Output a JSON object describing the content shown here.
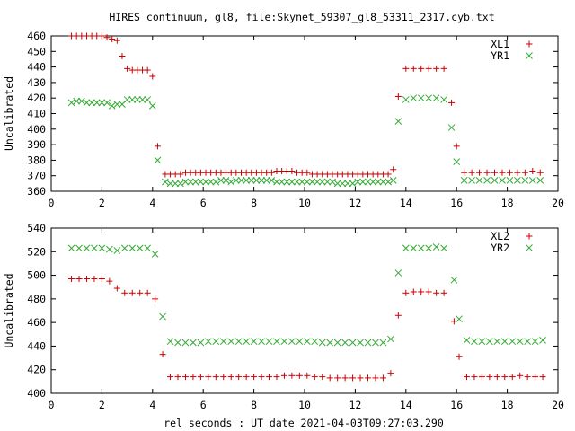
{
  "title": "HIRES continuum, gl8, file:Skynet_59307_gl8_53311_2317.cyb.txt",
  "xlabel": "rel seconds : UT date 2021-04-03T09:27:03.290",
  "colors": {
    "plus": "#cc0000",
    "x": "#33aa33"
  },
  "chart_data": [
    {
      "type": "scatter",
      "ylabel": "Uncalibrated",
      "xlim": [
        0,
        20
      ],
      "ylim": [
        360,
        460
      ],
      "xticks": [
        "0",
        "2",
        "4",
        "6",
        "8",
        "10",
        "12",
        "14",
        "16",
        "18",
        "20"
      ],
      "yticks": [
        "360",
        "370",
        "380",
        "390",
        "400",
        "410",
        "420",
        "430",
        "440",
        "450",
        "460"
      ],
      "legend_position": "top-right",
      "x": [
        0.8,
        1.0,
        1.2,
        1.4,
        1.6,
        1.8,
        2.0,
        2.2,
        2.4,
        2.6,
        2.8,
        3.0,
        3.2,
        3.4,
        3.6,
        3.8,
        4.0,
        4.2,
        4.5,
        4.7,
        4.9,
        5.1,
        5.3,
        5.5,
        5.7,
        5.9,
        6.1,
        6.3,
        6.5,
        6.7,
        6.9,
        7.1,
        7.3,
        7.5,
        7.7,
        7.9,
        8.1,
        8.3,
        8.5,
        8.7,
        8.9,
        9.1,
        9.3,
        9.5,
        9.7,
        9.9,
        10.1,
        10.3,
        10.5,
        10.7,
        10.9,
        11.1,
        11.3,
        11.5,
        11.7,
        11.9,
        12.1,
        12.3,
        12.5,
        12.7,
        12.9,
        13.1,
        13.3,
        13.5,
        13.7,
        14.0,
        14.3,
        14.6,
        14.9,
        15.2,
        15.5,
        15.8,
        16.0,
        16.3,
        16.6,
        16.9,
        17.2,
        17.5,
        17.8,
        18.1,
        18.4,
        18.7,
        19.0,
        19.3
      ],
      "series": [
        {
          "name": "XL1",
          "marker": "plus",
          "values": [
            460,
            460,
            460,
            460,
            460,
            460,
            460,
            459,
            458,
            457,
            447,
            439,
            438,
            438,
            438,
            438,
            434,
            389,
            371,
            371,
            371,
            371,
            372,
            372,
            372,
            372,
            372,
            372,
            372,
            372,
            372,
            372,
            372,
            372,
            372,
            372,
            372,
            372,
            372,
            372,
            373,
            373,
            373,
            373,
            372,
            372,
            372,
            371,
            371,
            371,
            371,
            371,
            371,
            371,
            371,
            371,
            371,
            371,
            371,
            371,
            371,
            371,
            371,
            374,
            421,
            439,
            439,
            439,
            439,
            439,
            439,
            417,
            389,
            372,
            372,
            372,
            372,
            372,
            372,
            372,
            372,
            372,
            373,
            372
          ]
        },
        {
          "name": "YR1",
          "marker": "x",
          "values": [
            417,
            418,
            418,
            417,
            417,
            417,
            417,
            417,
            415,
            416,
            416,
            419,
            419,
            419,
            419,
            419,
            415,
            380,
            366,
            365,
            365,
            365,
            366,
            366,
            366,
            366,
            366,
            366,
            366,
            367,
            367,
            366,
            367,
            367,
            367,
            367,
            367,
            367,
            367,
            367,
            366,
            366,
            366,
            366,
            366,
            366,
            366,
            366,
            366,
            366,
            366,
            366,
            365,
            365,
            365,
            365,
            366,
            366,
            366,
            366,
            366,
            366,
            366,
            367,
            405,
            419,
            420,
            420,
            420,
            420,
            419,
            401,
            379,
            367,
            367,
            367,
            367,
            367,
            367,
            367,
            367,
            367,
            367,
            367
          ]
        }
      ]
    },
    {
      "type": "scatter",
      "ylabel": "Uncalibrated",
      "xlim": [
        0,
        20
      ],
      "ylim": [
        400,
        540
      ],
      "xticks": [
        "0",
        "2",
        "4",
        "6",
        "8",
        "10",
        "12",
        "14",
        "16",
        "18",
        "20"
      ],
      "yticks": [
        "400",
        "420",
        "440",
        "460",
        "480",
        "500",
        "520",
        "540"
      ],
      "legend_position": "top-right",
      "x": [
        0.8,
        1.1,
        1.4,
        1.7,
        2.0,
        2.3,
        2.6,
        2.9,
        3.2,
        3.5,
        3.8,
        4.1,
        4.4,
        4.7,
        5.0,
        5.3,
        5.6,
        5.9,
        6.2,
        6.5,
        6.8,
        7.1,
        7.4,
        7.7,
        8.0,
        8.3,
        8.6,
        8.9,
        9.2,
        9.5,
        9.8,
        10.1,
        10.4,
        10.7,
        11.0,
        11.3,
        11.6,
        11.9,
        12.2,
        12.5,
        12.8,
        13.1,
        13.4,
        13.7,
        14.0,
        14.3,
        14.6,
        14.9,
        15.2,
        15.5,
        15.9,
        16.1,
        16.4,
        16.7,
        17.0,
        17.3,
        17.6,
        17.9,
        18.2,
        18.5,
        18.8,
        19.1,
        19.4
      ],
      "series": [
        {
          "name": "XL2",
          "marker": "plus",
          "values": [
            497,
            497,
            497,
            497,
            497,
            495,
            489,
            485,
            485,
            485,
            485,
            480,
            433,
            414,
            414,
            414,
            414,
            414,
            414,
            414,
            414,
            414,
            414,
            414,
            414,
            414,
            414,
            414,
            415,
            415,
            415,
            415,
            414,
            414,
            413,
            413,
            413,
            413,
            413,
            413,
            413,
            413,
            417,
            466,
            485,
            486,
            486,
            486,
            485,
            485,
            461,
            431,
            414,
            414,
            414,
            414,
            414,
            414,
            414,
            415,
            414,
            414,
            414
          ]
        },
        {
          "name": "YR2",
          "marker": "x",
          "values": [
            523,
            523,
            523,
            523,
            523,
            522,
            521,
            523,
            523,
            523,
            523,
            518,
            465,
            444,
            443,
            443,
            443,
            443,
            444,
            444,
            444,
            444,
            444,
            444,
            444,
            444,
            444,
            444,
            444,
            444,
            444,
            444,
            444,
            443,
            443,
            443,
            443,
            443,
            443,
            443,
            443,
            443,
            446,
            502,
            523,
            523,
            523,
            523,
            524,
            523,
            496,
            463,
            445,
            444,
            444,
            444,
            444,
            444,
            444,
            444,
            444,
            444,
            445
          ]
        }
      ]
    }
  ]
}
